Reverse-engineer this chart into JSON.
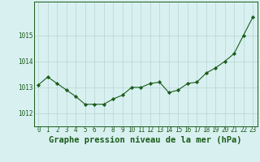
{
  "hours": [
    0,
    1,
    2,
    3,
    4,
    5,
    6,
    7,
    8,
    9,
    10,
    11,
    12,
    13,
    14,
    15,
    16,
    17,
    18,
    19,
    20,
    21,
    22,
    23
  ],
  "pressure": [
    1013.1,
    1013.4,
    1013.15,
    1012.9,
    1012.65,
    1012.35,
    1012.35,
    1012.35,
    1012.55,
    1012.7,
    1013.0,
    1013.0,
    1013.15,
    1013.2,
    1012.8,
    1012.9,
    1013.15,
    1013.2,
    1013.55,
    1013.75,
    1014.0,
    1014.3,
    1015.0,
    1015.7
  ],
  "line_color": "#1a5c1a",
  "marker_color": "#1a5c1a",
  "background_color": "#d8f0f0",
  "grid_color": "#b8d4d4",
  "axis_label_color": "#1a5c1a",
  "tick_label_color": "#1a5c1a",
  "xlabel": "Graphe pression niveau de la mer (hPa)",
  "ylim": [
    1011.5,
    1016.3
  ],
  "yticks": [
    1012,
    1013,
    1014,
    1015
  ],
  "tick_fontsize": 5.5,
  "xlabel_fontsize": 7.5
}
